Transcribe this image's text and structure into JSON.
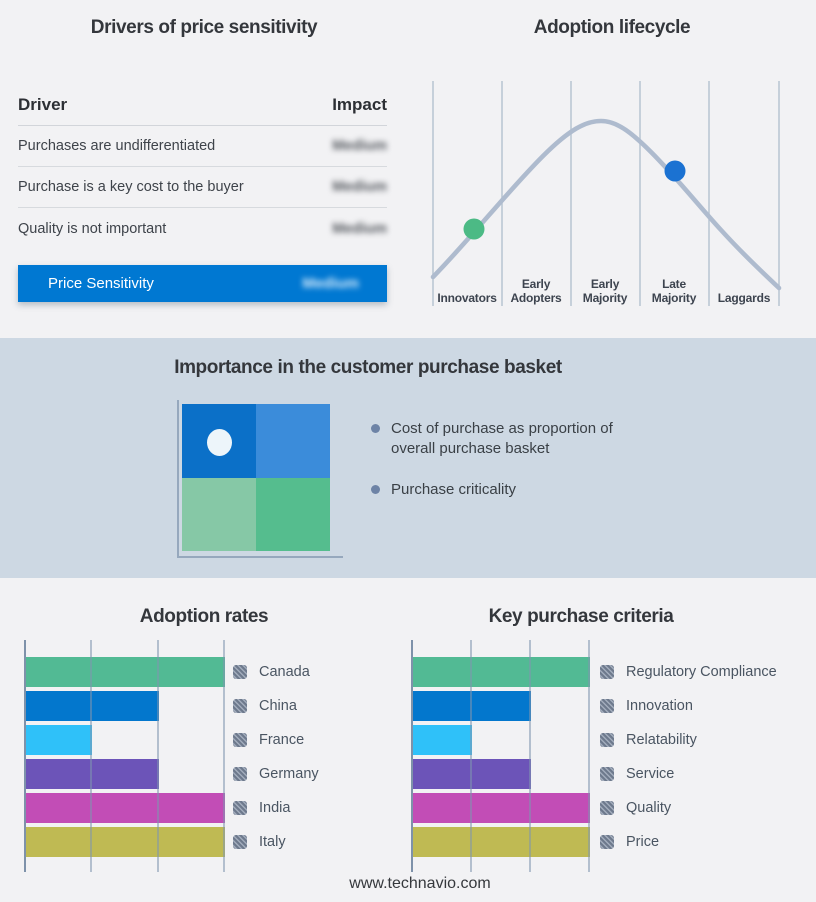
{
  "page": {
    "footer_url": "www.technavio.com",
    "background": "#f2f2f4",
    "band_background": "#cdd8e3"
  },
  "drivers_panel": {
    "title": "Drivers of price sensitivity",
    "columns": {
      "driver": "Driver",
      "impact": "Impact"
    },
    "rows": [
      {
        "driver": "Purchases are undifferentiated",
        "impact": "Medium",
        "impact_redacted": true
      },
      {
        "driver": "Purchase is a key cost to the buyer",
        "impact": "Medium",
        "impact_redacted": true
      },
      {
        "driver": "Quality is not important",
        "impact": "Medium",
        "impact_redacted": true
      }
    ],
    "highlight_row": {
      "label": "Price Sensitivity",
      "impact": "Medium",
      "impact_redacted": true,
      "background": "#0078d2"
    }
  },
  "lifecycle_panel": {
    "title": "Adoption lifecycle",
    "stages": [
      "Innovators",
      "Early\nAdopters",
      "Early\nMajority",
      "Late\nMajority",
      "Laggards"
    ],
    "curve_color": "#aebbce",
    "gridline_color": "#b8c4d2",
    "markers": [
      {
        "name": "innovators-stage-dot",
        "color": "#4cba85",
        "position": "rising slope within Innovators segment"
      },
      {
        "name": "late-majority-stage-dot",
        "color": "#1b72d2",
        "position": "falling slope within Late Majority segment"
      }
    ]
  },
  "basket_panel": {
    "title": "Importance in the customer purchase basket",
    "matrix_colors": [
      "#0b70c8",
      "#3b8cda",
      "#86c8a6",
      "#55bd8e"
    ],
    "matrix_dot_color": "#edf5fa",
    "bullets": [
      "Cost of purchase as proportion of overall purchase basket",
      "Purchase criticality"
    ]
  },
  "chart_data": [
    {
      "type": "bar",
      "orientation": "horizontal",
      "title": "Adoption rates",
      "categories": [
        "Canada",
        "China",
        "France",
        "Germany",
        "India",
        "Italy"
      ],
      "values": [
        1,
        0.667,
        0.333,
        0.667,
        1,
        1
      ],
      "values_note": "axis unlabeled; values read as fractions of full axis (3 gridline intervals)",
      "colors": [
        "#52ba94",
        "#0377cd",
        "#2fc1f9",
        "#6c54b8",
        "#c24db6",
        "#bfba53"
      ],
      "xlim": [
        0,
        1
      ],
      "gridlines_at": [
        0.333,
        0.667,
        1
      ],
      "tick_labels_visible": false,
      "legend_position": "right",
      "legend_swatch": "redacted-hatched-square"
    },
    {
      "type": "bar",
      "orientation": "horizontal",
      "title": "Key purchase criteria",
      "categories": [
        "Regulatory Compliance",
        "Innovation",
        "Relatability",
        "Service",
        "Quality",
        "Price"
      ],
      "values": [
        1,
        0.667,
        0.333,
        0.667,
        1,
        1
      ],
      "values_note": "axis unlabeled; values read as fractions of full axis (3 gridline intervals)",
      "colors": [
        "#52ba94",
        "#0377cd",
        "#2fc1f9",
        "#6c54b8",
        "#c24db6",
        "#bfba53"
      ],
      "xlim": [
        0,
        1
      ],
      "gridlines_at": [
        0.333,
        0.667,
        1
      ],
      "tick_labels_visible": false,
      "legend_position": "right",
      "legend_swatch": "redacted-hatched-square"
    }
  ]
}
